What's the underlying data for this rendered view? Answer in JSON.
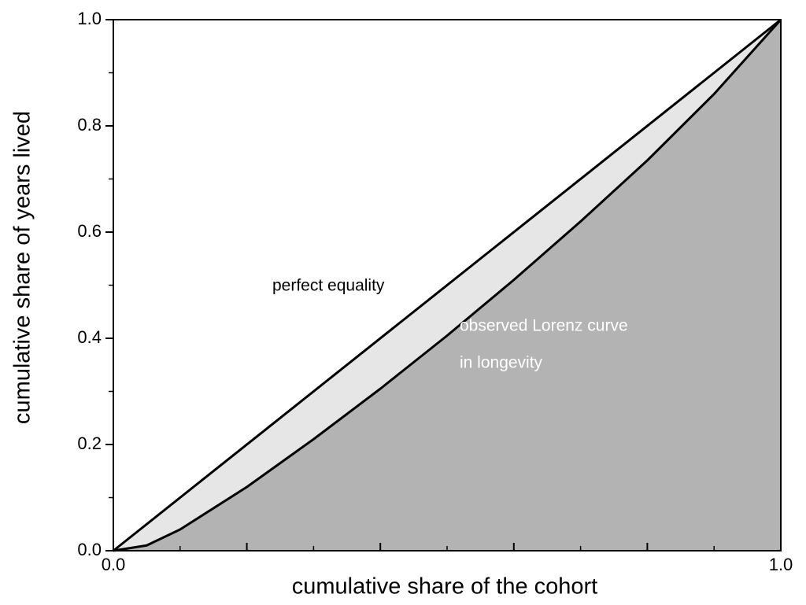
{
  "chart_data": {
    "type": "lorenz",
    "x_label": "cumulative share of the cohort",
    "y_label": "cumulative share of years lived",
    "xlim": [
      0,
      1
    ],
    "ylim": [
      0,
      1
    ],
    "xticks": [
      {
        "value": 0,
        "label": "0.0"
      },
      {
        "value": 0.2,
        "label": null
      },
      {
        "value": 0.4,
        "label": null
      },
      {
        "value": 0.6,
        "label": null
      },
      {
        "value": 0.8,
        "label": null
      },
      {
        "value": 1,
        "label": "1.0"
      }
    ],
    "xminorticks": [
      0.1,
      0.3,
      0.5,
      0.7,
      0.9
    ],
    "yticks": [
      {
        "value": 0,
        "label": "0.0"
      },
      0.2,
      0.4,
      0.6,
      0.8,
      {
        "value": 1,
        "label": "1.0"
      }
    ],
    "yminorticks": [
      0.1,
      0.3,
      0.5,
      0.7,
      0.9
    ],
    "series": [
      {
        "line_color": "#000000",
        "fill": "#e6e6e6",
        "x": [
          0,
          1
        ],
        "values": [
          0,
          1
        ]
      },
      {
        "line_color": "#000000",
        "fill": "#b3b3b3",
        "x": [
          0,
          0.05,
          0.1,
          0.2,
          0.3,
          0.4,
          0.5,
          0.6,
          0.7,
          0.8,
          0.9,
          1
        ],
        "values": [
          0,
          0.01,
          0.04,
          0.12,
          0.21,
          0.305,
          0.405,
          0.51,
          0.62,
          0.735,
          0.86,
          1
        ]
      }
    ],
    "annotations": [
      {
        "text": "perfect equality",
        "color": "#000000"
      },
      {
        "text": "observed Lorenz curve",
        "color": "#ffffff"
      },
      {
        "text": "in longevity",
        "color": "#ffffff"
      }
    ]
  }
}
